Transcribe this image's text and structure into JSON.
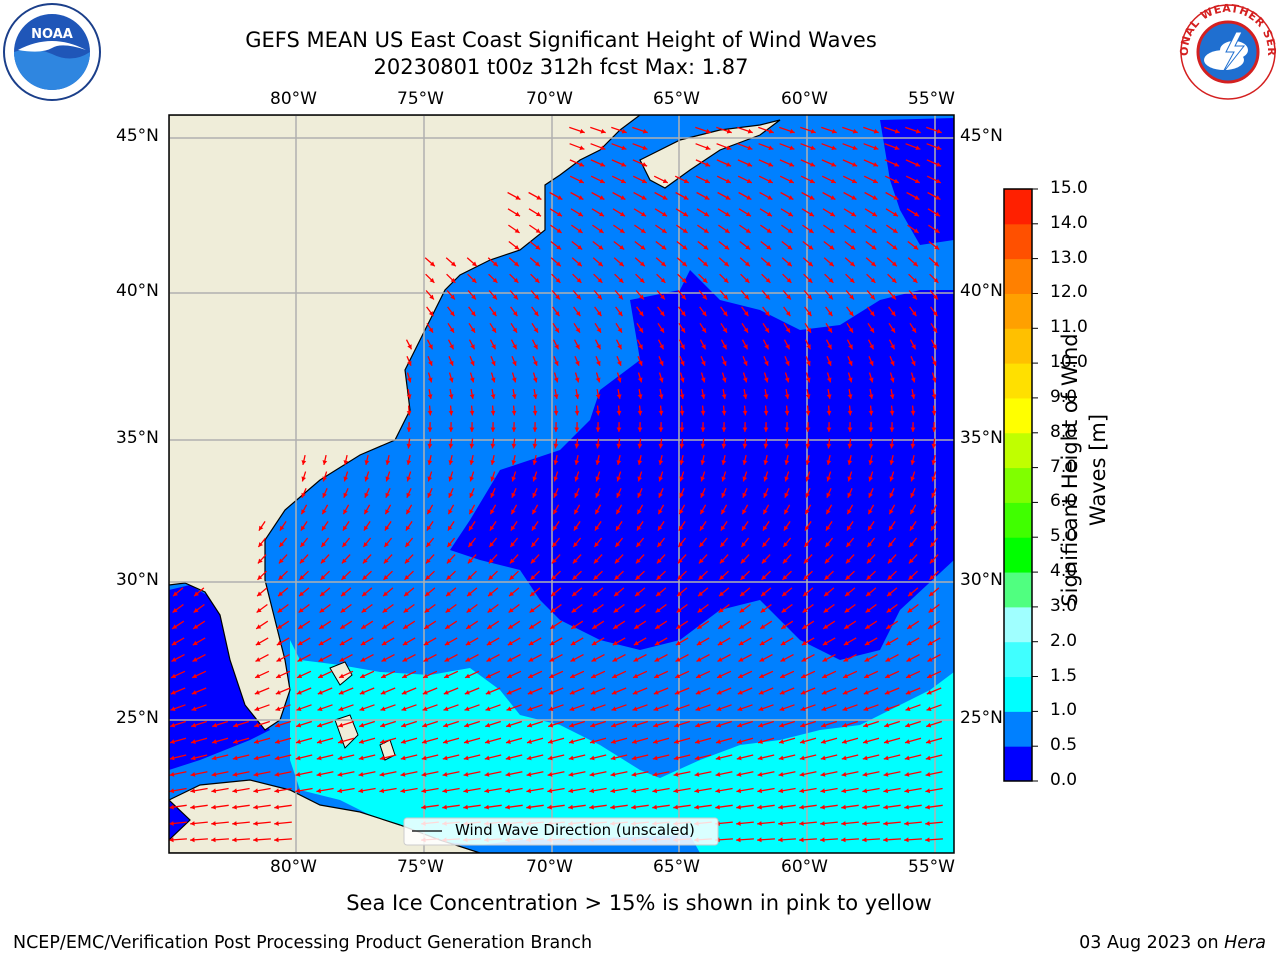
{
  "header": {
    "title_line1": "GEFS MEAN US East Coast Significant Height of Wind Waves",
    "title_line2": "20230801 t00z 312h fcst   Max: 1.87"
  },
  "logos": {
    "left": {
      "name": "noaa-logo",
      "text": "NOAA"
    },
    "right": {
      "name": "nws-logo",
      "text": "NATIONAL WEATHER SERVICE"
    }
  },
  "map": {
    "lon_ticks": [
      "80°W",
      "75°W",
      "70°W",
      "65°W",
      "60°W",
      "55°W"
    ],
    "lat_ticks": [
      "45°N",
      "40°N",
      "35°N",
      "30°N",
      "25°N"
    ],
    "legend_label": "Wind Wave Direction (unscaled)",
    "arrow_color": "#ff0000",
    "land_color": "#efedd9",
    "grid_color": "#b0b0b0"
  },
  "colorbar": {
    "label_line1": "Significant Height of Wind",
    "label_line2": "Waves [m]",
    "tick_labels": [
      "0.0",
      "0.5",
      "1.0",
      "1.5",
      "2.0",
      "3.0",
      "4.0",
      "5.0",
      "6.0",
      "7.0",
      "8.0",
      "9.0",
      "10.0",
      "11.0",
      "12.0",
      "13.0",
      "14.0",
      "15.0"
    ],
    "colors": [
      "#0000ff",
      "#0080ff",
      "#00ffff",
      "#40ffff",
      "#a0ffff",
      "#50ff80",
      "#00ff00",
      "#40ff00",
      "#80ff00",
      "#c0ff00",
      "#ffff00",
      "#ffe000",
      "#ffc000",
      "#ffa000",
      "#ff8000",
      "#ff5000",
      "#ff2000",
      "#ff0000"
    ]
  },
  "footer": {
    "sea_ice_note": "Sea Ice Concentration > 15% is shown in pink to yellow",
    "branch": "NCEP/EMC/Verification Post Processing Product Generation Branch",
    "date": "03 Aug 2023 on ",
    "machine": "Hera"
  }
}
